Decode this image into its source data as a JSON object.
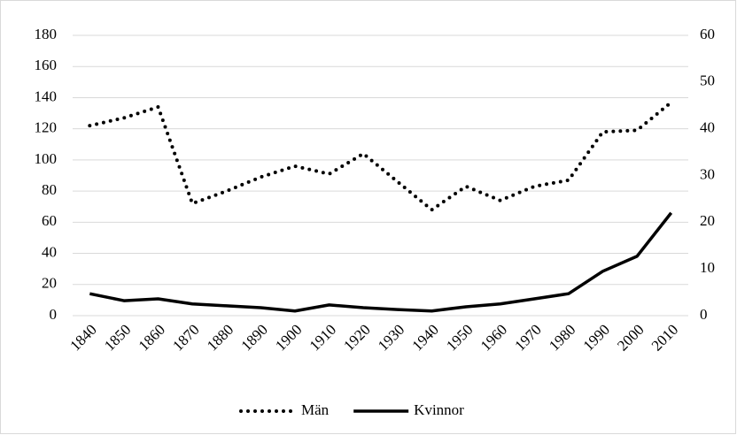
{
  "chart_data": {
    "type": "line",
    "categories": [
      "1840",
      "1850",
      "1860",
      "1870",
      "1880",
      "1890",
      "1900",
      "1910",
      "1920",
      "1930",
      "1940",
      "1950",
      "1960",
      "1970",
      "1980",
      "1990",
      "2000",
      "2010"
    ],
    "series": [
      {
        "name": "Män",
        "color": "#000000",
        "style": "dotted",
        "axis": "y",
        "values": [
          122,
          127,
          134,
          72,
          80,
          89,
          96,
          91,
          104,
          86,
          68,
          83,
          74,
          83,
          87,
          118,
          119,
          137
        ]
      },
      {
        "name": "Kvinnor",
        "color": "#000000",
        "style": "solid",
        "axis": "y2",
        "values": [
          4.7,
          3.2,
          3.6,
          2.5,
          2.1,
          1.7,
          1.0,
          2.3,
          1.7,
          1.3,
          1.0,
          1.9,
          2.5,
          3.6,
          4.7,
          9.5,
          12.7,
          22
        ]
      }
    ],
    "ylim": [
      0,
      180
    ],
    "yticks": [
      0,
      20,
      40,
      60,
      80,
      100,
      120,
      140,
      160,
      180
    ],
    "y2lim": [
      0,
      60
    ],
    "y2ticks": [
      0,
      10,
      20,
      30,
      40,
      50,
      60
    ],
    "grid": true,
    "legend": "bottom"
  }
}
